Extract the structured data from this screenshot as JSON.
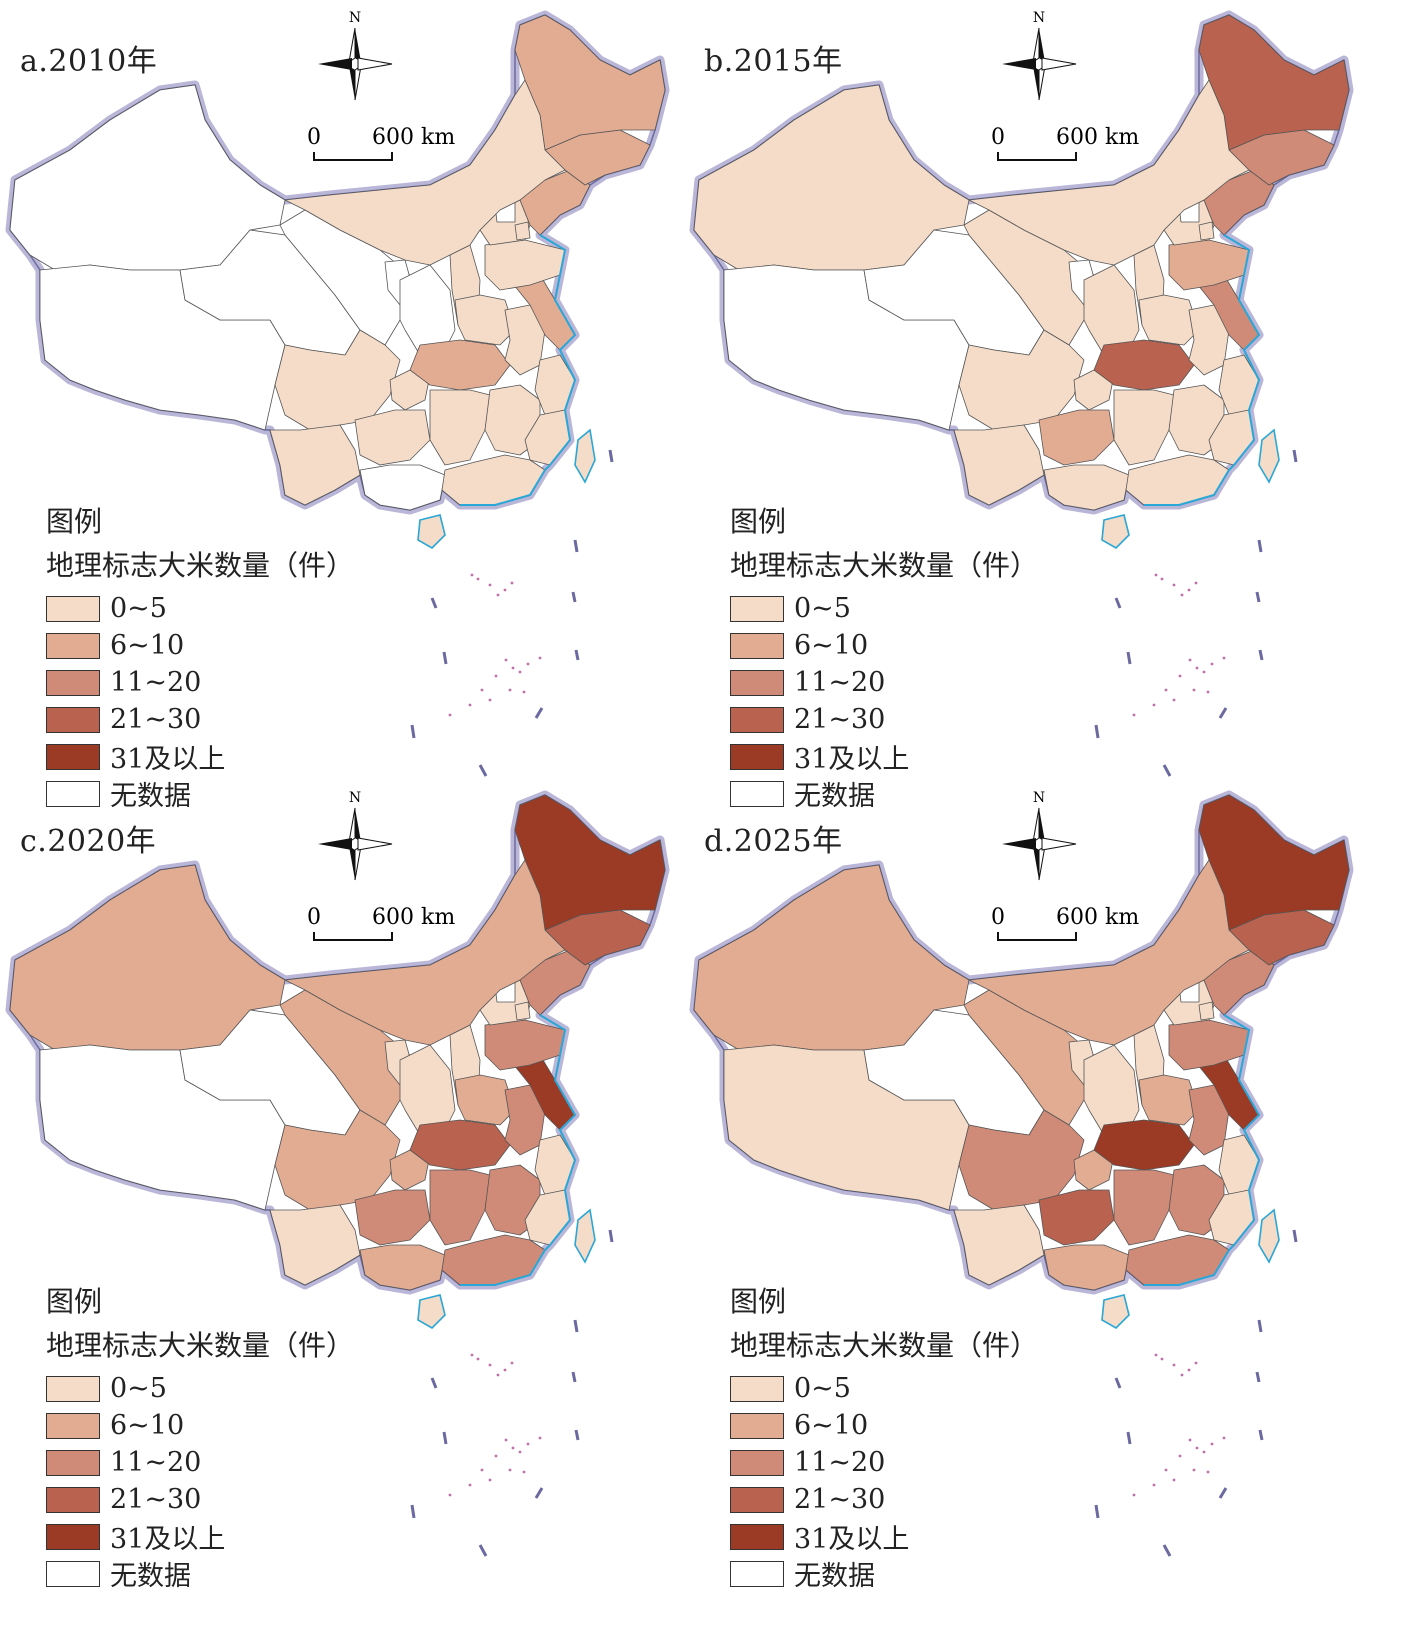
{
  "panels": [
    {
      "id": "a",
      "title": "a.2010年",
      "region_classes": {
        "xinjiang": 5,
        "tibet": 5,
        "qinghai": 5,
        "gansu": 5,
        "ningxia": 5,
        "shaanxi": 5,
        "shanxi": 0,
        "sichuan": 0,
        "yunnan": 0,
        "guizhou": 0,
        "guangxi": 5,
        "chongqing": 0,
        "hubei": 1,
        "hunan": 0,
        "jiangxi": 0,
        "fujian": 0,
        "zhejiang": 0,
        "jiangsu": 1,
        "anhui": 0,
        "shandong": 0,
        "henan": 0,
        "hebei": 0,
        "beijing": 5,
        "tianjin": 0,
        "liaoning": 1,
        "jilin": 1,
        "heilongjiang": 1,
        "neimenggu": 0,
        "guangdong": 0,
        "hainan": 0,
        "taiwan": 0
      }
    },
    {
      "id": "b",
      "title": "b.2015年",
      "region_classes": {
        "xinjiang": 0,
        "tibet": 5,
        "qinghai": 5,
        "gansu": 0,
        "ningxia": 5,
        "shaanxi": 0,
        "shanxi": 0,
        "sichuan": 0,
        "yunnan": 0,
        "guizhou": 1,
        "guangxi": 0,
        "chongqing": 0,
        "hubei": 3,
        "hunan": 0,
        "jiangxi": 0,
        "fujian": 0,
        "zhejiang": 0,
        "jiangsu": 2,
        "anhui": 0,
        "shandong": 1,
        "henan": 0,
        "hebei": 0,
        "beijing": 5,
        "tianjin": 0,
        "liaoning": 2,
        "jilin": 2,
        "heilongjiang": 3,
        "neimenggu": 0,
        "guangdong": 0,
        "hainan": 0,
        "taiwan": 0
      }
    },
    {
      "id": "c",
      "title": "c.2020年",
      "region_classes": {
        "xinjiang": 1,
        "tibet": 5,
        "qinghai": 5,
        "gansu": 1,
        "ningxia": 0,
        "shaanxi": 0,
        "shanxi": 0,
        "sichuan": 1,
        "yunnan": 0,
        "guizhou": 2,
        "guangxi": 1,
        "chongqing": 1,
        "hubei": 3,
        "hunan": 2,
        "jiangxi": 2,
        "fujian": 0,
        "zhejiang": 0,
        "jiangsu": 4,
        "anhui": 2,
        "shandong": 2,
        "henan": 1,
        "hebei": 0,
        "beijing": 5,
        "tianjin": 0,
        "liaoning": 2,
        "jilin": 3,
        "heilongjiang": 4,
        "neimenggu": 1,
        "guangdong": 2,
        "hainan": 0,
        "taiwan": 0
      }
    },
    {
      "id": "d",
      "title": "d.2025年",
      "region_classes": {
        "xinjiang": 1,
        "tibet": 0,
        "qinghai": 5,
        "gansu": 1,
        "ningxia": 0,
        "shaanxi": 0,
        "shanxi": 0,
        "sichuan": 2,
        "yunnan": 0,
        "guizhou": 3,
        "guangxi": 1,
        "chongqing": 1,
        "hubei": 4,
        "hunan": 2,
        "jiangxi": 2,
        "fujian": 0,
        "zhejiang": 0,
        "jiangsu": 4,
        "anhui": 2,
        "shandong": 2,
        "henan": 1,
        "hebei": 0,
        "beijing": 5,
        "tianjin": 0,
        "liaoning": 2,
        "jilin": 3,
        "heilongjiang": 4,
        "neimenggu": 1,
        "guangdong": 2,
        "hainan": 0,
        "taiwan": 0
      }
    }
  ],
  "north_label": "N",
  "scale": {
    "zero": "0",
    "distance": "600 km"
  },
  "legend": {
    "title": "图例",
    "subtitle": "地理标志大米数量（件）",
    "classes": [
      {
        "label": "0~5",
        "color": "#f5dcc8"
      },
      {
        "label": "6~10",
        "color": "#e2ac93"
      },
      {
        "label": "11~20",
        "color": "#d08b78"
      },
      {
        "label": "21~30",
        "color": "#b8624f"
      },
      {
        "label": "31及以上",
        "color": "#9b3a25"
      },
      {
        "label": "无数据",
        "color": "#ffffff"
      }
    ]
  },
  "colors": {
    "border_halo": "#b9b6d8",
    "coast": "#29a7d6",
    "boundary": "#555555"
  }
}
